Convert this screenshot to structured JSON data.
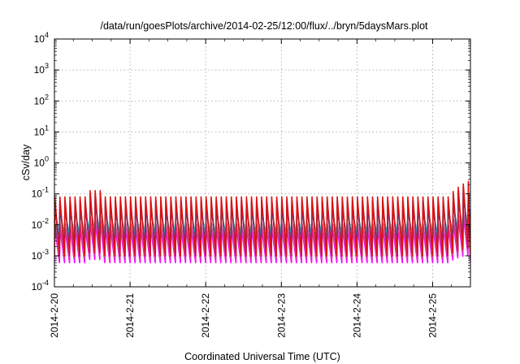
{
  "chart_data": {
    "type": "line",
    "title": "/data/run/goesPlots/archive/2014-02-25/12:00/flux/../bryn/5daysMars.plot",
    "xlabel": "Coordinated Universal Time (UTC)",
    "ylabel": "cSv/day",
    "yscale": "log",
    "ylim_exponent": [
      -4,
      4
    ],
    "y_ticks": [
      {
        "base": "10",
        "exp": "-4"
      },
      {
        "base": "10",
        "exp": "-3"
      },
      {
        "base": "10",
        "exp": "-2"
      },
      {
        "base": "10",
        "exp": "-1"
      },
      {
        "base": "10",
        "exp": "0"
      },
      {
        "base": "10",
        "exp": "1"
      },
      {
        "base": "10",
        "exp": "2"
      },
      {
        "base": "10",
        "exp": "3"
      },
      {
        "base": "10",
        "exp": "4"
      }
    ],
    "x_ticks": [
      "2014-2-20",
      "2014-2-21",
      "2014-2-22",
      "2014-2-23",
      "2014-2-24",
      "2014-2-25"
    ],
    "xlim": [
      "2014-2-20 00:00",
      "2014-2-25 12:00"
    ],
    "grid": true,
    "oscillation_period_hours": 1.6,
    "series": [
      {
        "color": "#dd1111",
        "peak": 0.08,
        "trough": 0.001
      },
      {
        "color": "#2233cc",
        "peak": 0.06,
        "trough": 0.0012
      },
      {
        "color": "#1188dd",
        "peak": 0.04,
        "trough": 0.0025
      },
      {
        "color": "#11cccc",
        "peak": 0.03,
        "trough": 0.004
      },
      {
        "color": "#22aa66",
        "peak": 0.025,
        "trough": 0.005
      },
      {
        "color": "#cc44aa",
        "peak": 0.012,
        "trough": 0.0008
      },
      {
        "color": "#ff00ff",
        "peak": 0.008,
        "trough": 0.0006
      }
    ]
  }
}
